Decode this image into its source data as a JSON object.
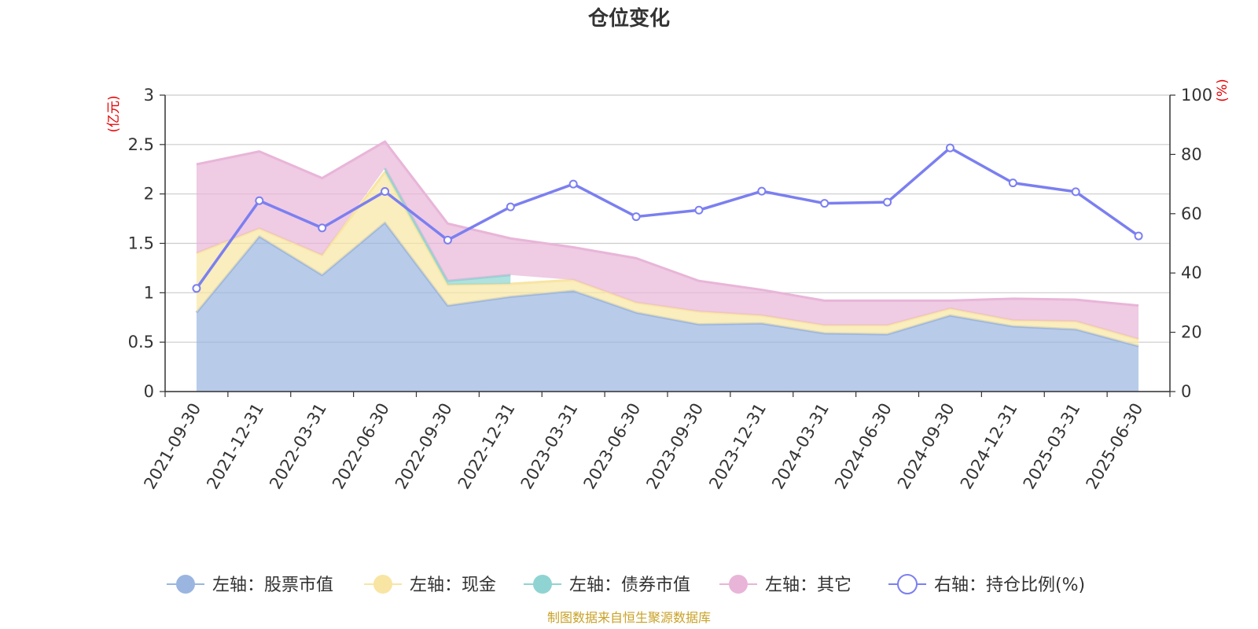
{
  "chart_data": {
    "type": "area",
    "title": "仓位变化",
    "left_axis": {
      "unit_label": "(亿元)",
      "ylim": [
        0,
        3
      ],
      "ticks": [
        "0",
        "0.5",
        "1",
        "1.5",
        "2",
        "2.5",
        "3"
      ]
    },
    "right_axis": {
      "unit_label": "(%)",
      "ylim": [
        0,
        100
      ],
      "ticks": [
        "0",
        "20",
        "40",
        "60",
        "80",
        "100"
      ]
    },
    "categories": [
      "2021-09-30",
      "2021-12-31",
      "2022-03-31",
      "2022-06-30",
      "2022-09-30",
      "2022-12-31",
      "2023-03-31",
      "2023-06-30",
      "2023-09-30",
      "2023-12-31",
      "2024-03-31",
      "2024-06-30",
      "2024-09-30",
      "2024-12-31",
      "2025-03-31",
      "2025-06-30"
    ],
    "series": [
      {
        "name": "左轴：股票市值",
        "axis": "left",
        "kind": "stacked-area",
        "color": "#9ab5e0",
        "values": [
          0.8,
          1.57,
          1.18,
          1.71,
          0.87,
          0.96,
          1.02,
          0.8,
          0.68,
          0.69,
          0.59,
          0.58,
          0.77,
          0.66,
          0.63,
          0.46
        ]
      },
      {
        "name": "左轴：现金",
        "axis": "left",
        "kind": "stacked-area",
        "color": "#f8e5a3",
        "values": [
          0.6,
          0.08,
          0.2,
          0.51,
          0.21,
          0.13,
          0.11,
          0.1,
          0.13,
          0.08,
          0.08,
          0.09,
          0.07,
          0.06,
          0.08,
          0.07
        ]
      },
      {
        "name": "左轴：债券市值",
        "axis": "left",
        "kind": "stacked-area",
        "color": "#8fd4d2",
        "values": [
          0,
          0,
          0,
          0.04,
          0.04,
          0.09,
          null,
          null,
          null,
          null,
          null,
          null,
          null,
          null,
          null,
          null
        ]
      },
      {
        "name": "左轴：其它",
        "axis": "left",
        "kind": "stacked-area",
        "color": "#e8b5d8",
        "values": [
          0.9,
          0.78,
          0.78,
          0.27,
          0.58,
          0.37,
          0.33,
          0.45,
          0.31,
          0.26,
          0.25,
          0.25,
          0.08,
          0.22,
          0.22,
          0.34
        ]
      },
      {
        "name": "右轴：持仓比例(%)",
        "axis": "right",
        "kind": "line",
        "color": "#7b7ff0",
        "values": [
          34.8,
          64.4,
          55.2,
          67.5,
          51.1,
          62.3,
          70.0,
          59.0,
          61.2,
          67.6,
          63.5,
          63.9,
          82.2,
          70.4,
          67.4,
          52.5
        ]
      }
    ],
    "grid": true,
    "legend_position": "bottom"
  },
  "source_text": "制图数据来自恒生聚源数据库"
}
